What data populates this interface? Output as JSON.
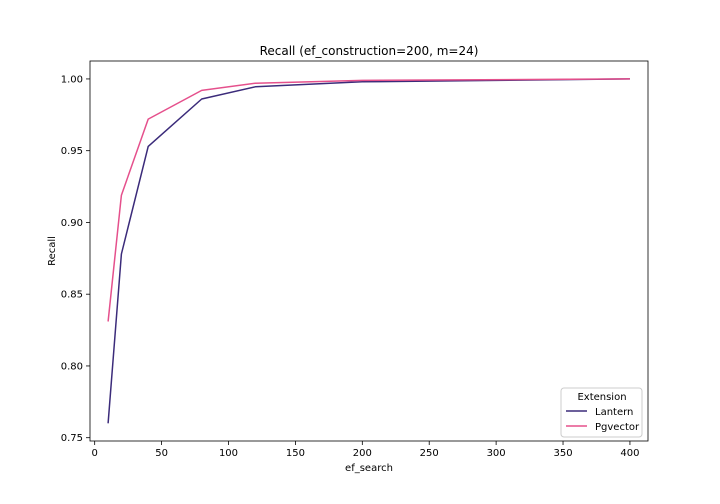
{
  "chart_data": {
    "type": "line",
    "title": "Recall (ef_construction=200, m=24)",
    "xlabel": "ef_search",
    "ylabel": "Recall",
    "xlim": [
      -3.5,
      413.5
    ],
    "ylim": [
      0.7477,
      1.0125
    ],
    "xticks": [
      0,
      50,
      100,
      150,
      200,
      250,
      300,
      350,
      400
    ],
    "yticks": [
      0.75,
      0.8,
      0.85,
      0.9,
      0.95,
      1.0
    ],
    "grid": false,
    "legend": {
      "title": "Extension",
      "position": "lower-right"
    },
    "x": [
      10,
      20,
      40,
      80,
      120,
      200,
      400
    ],
    "series": [
      {
        "name": "Lantern",
        "color": "#3b2b7a",
        "values": [
          0.76,
          0.878,
          0.953,
          0.986,
          0.9945,
          0.998,
          1.0
        ]
      },
      {
        "name": "Pgvector",
        "color": "#e5508c",
        "values": [
          0.831,
          0.919,
          0.972,
          0.992,
          0.997,
          0.999,
          1.0
        ]
      }
    ]
  }
}
